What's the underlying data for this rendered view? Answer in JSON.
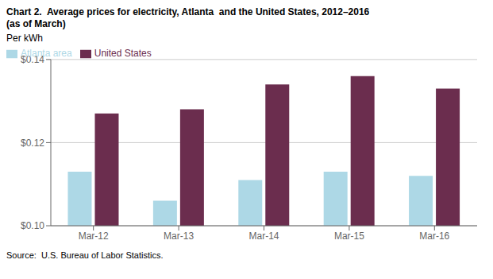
{
  "chart_data": {
    "type": "bar",
    "title": "Chart 2.  Average prices for electricity, Atlanta  and the United States, 2012–2016",
    "subtitle": "(as of March)",
    "y_label": "Per kWh",
    "annotations": [
      "Source:  U.S. Bureau of Labor Statistics."
    ],
    "categories": [
      "Mar-12",
      "Mar-13",
      "Mar-14",
      "Mar-15",
      "Mar-16"
    ],
    "series": [
      {
        "name": "Atlanta area",
        "color": "#add8e6",
        "values": [
          0.113,
          0.106,
          0.111,
          0.113,
          0.112
        ]
      },
      {
        "name": "United States",
        "color": "#6B2D4E",
        "values": [
          0.127,
          0.128,
          0.134,
          0.136,
          0.133
        ]
      }
    ],
    "ylim": [
      0.1,
      0.14
    ],
    "yticks": [
      {
        "value": 0.1,
        "label": "$0.10"
      },
      {
        "value": 0.12,
        "label": "$0.12"
      },
      {
        "value": 0.14,
        "label": "$0.14"
      }
    ],
    "grid": true,
    "legend": "upper left"
  }
}
